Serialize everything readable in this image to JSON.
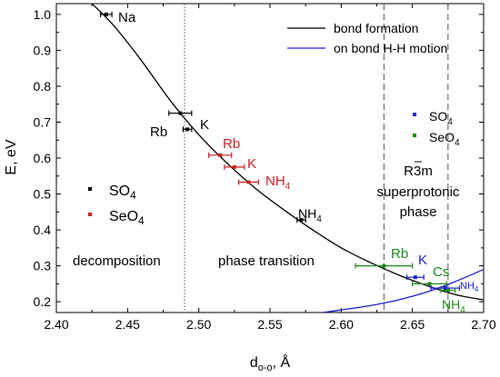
{
  "chart_data": {
    "type": "line",
    "title": "",
    "xlabel": "d",
    "xlabel_sub": "o-o",
    "xlabel_unit": ", Å",
    "ylabel": "E, eV",
    "xlim": [
      2.4,
      2.7
    ],
    "ylim": [
      0.17,
      1.03
    ],
    "x_ticks": [
      2.4,
      2.45,
      2.5,
      2.55,
      2.6,
      2.65,
      2.7
    ],
    "x_tick_labels": [
      "2.40",
      "2.45",
      "2.50",
      "2.55",
      "2.60",
      "2.65",
      "2.70"
    ],
    "y_ticks": [
      0.2,
      0.3,
      0.4,
      0.5,
      0.6,
      0.7,
      0.8,
      0.9,
      1.0
    ],
    "y_tick_labels": [
      "0.2",
      "0.3",
      "0.4",
      "0.5",
      "0.6",
      "0.7",
      "0.8",
      "0.9",
      "1.0"
    ],
    "grid": false,
    "legend_position": "top-right",
    "colors": {
      "bond_formation": "#000000",
      "hh_motion": "#1f1fd6",
      "so4": "#000000",
      "seo4": "#cc2222",
      "green": "#1a8a1a",
      "blue_label": "#1f1fd6"
    },
    "series": [
      {
        "name": "bond formation",
        "x": [
          2.425,
          2.44,
          2.46,
          2.48,
          2.5,
          2.52,
          2.54,
          2.56,
          2.58,
          2.6,
          2.62,
          2.64,
          2.66,
          2.68,
          2.7
        ],
        "y": [
          1.03,
          0.97,
          0.87,
          0.76,
          0.665,
          0.585,
          0.515,
          0.455,
          0.4,
          0.35,
          0.31,
          0.275,
          0.245,
          0.22,
          0.205
        ]
      },
      {
        "name": "on bond H-H motion",
        "x": [
          2.587,
          2.6,
          2.62,
          2.64,
          2.66,
          2.68,
          2.7
        ],
        "y": [
          0.17,
          0.177,
          0.189,
          0.205,
          0.227,
          0.256,
          0.29
        ]
      }
    ],
    "points": [
      {
        "label": "Na",
        "x": 2.435,
        "y": 1.0,
        "xerr": 0.004,
        "group": "SO4"
      },
      {
        "label": "Rb",
        "x": 2.487,
        "y": 0.725,
        "xerr": 0.008,
        "group": "SO4"
      },
      {
        "label": "K",
        "x": 2.492,
        "y": 0.68,
        "xerr": 0.003,
        "group": "SO4"
      },
      {
        "label": "NH4",
        "x": 2.572,
        "y": 0.428,
        "xerr": 0.003,
        "group": "SO4"
      },
      {
        "label": "Rb",
        "x": 2.515,
        "y": 0.608,
        "xerr": 0.008,
        "group": "SeO4"
      },
      {
        "label": "K",
        "x": 2.525,
        "y": 0.575,
        "xerr": 0.007,
        "group": "SeO4"
      },
      {
        "label": "NH4",
        "x": 2.535,
        "y": 0.533,
        "xerr": 0.007,
        "group": "SeO4"
      },
      {
        "label": "Rb",
        "x": 2.63,
        "y": 0.3,
        "xerr": 0.02,
        "group": "green"
      },
      {
        "label": "K",
        "x": 2.652,
        "y": 0.268,
        "xerr": 0.006,
        "group": "blue"
      },
      {
        "label": "Cs",
        "x": 2.662,
        "y": 0.25,
        "xerr": 0.012,
        "group": "green"
      },
      {
        "label": "NH4",
        "x": 2.673,
        "y": 0.238,
        "xerr": 0.01,
        "group": "blue"
      },
      {
        "label": "NH4",
        "x": 2.675,
        "y": 0.232,
        "xerr": 0.005,
        "group": "green"
      }
    ],
    "vlines": [
      {
        "x": 2.49,
        "style": "dotted"
      },
      {
        "x": 2.63,
        "style": "dashed"
      },
      {
        "x": 2.675,
        "style": "dashed"
      }
    ],
    "legend": {
      "items": [
        {
          "label": "bond formation",
          "color": "#000000"
        },
        {
          "label": "on bond H-H motion",
          "color": "#1f1fd6"
        }
      ]
    },
    "annotations": {
      "decomposition": "decomposition",
      "phase_transition": "phase transition",
      "r3m": "R3m",
      "superprotonic": "superprotonic",
      "phase": "phase",
      "left_legend_so4": "SO",
      "left_legend_seo4": "SeO",
      "right_legend_so4": "SO",
      "right_legend_seo4": "SeO",
      "sub4": "4",
      "na": "Na",
      "rb": "Rb",
      "k": "K",
      "cs": "Cs",
      "nh": "NH"
    }
  }
}
